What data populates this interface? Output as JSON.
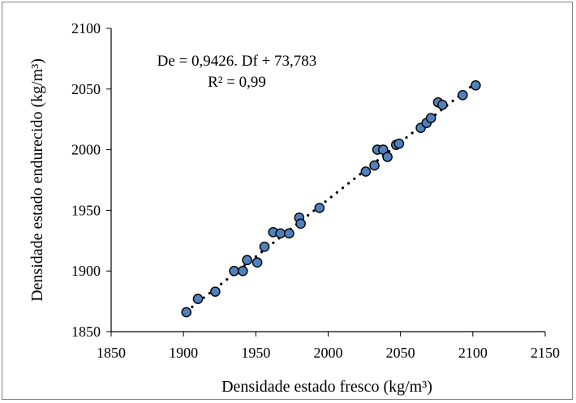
{
  "chart_data": {
    "type": "scatter",
    "xlabel": "Densidade estado fresco (kg/m³)",
    "ylabel": "Densidade estado endurecido (kg/m³)",
    "xlim": [
      1850,
      2150
    ],
    "ylim": [
      1850,
      2100
    ],
    "x_ticks": [
      "1850",
      "1900",
      "1950",
      "2000",
      "2050",
      "2100",
      "2150"
    ],
    "y_ticks": [
      "1850",
      "1900",
      "1950",
      "2000",
      "2050",
      "2100"
    ],
    "equation": "De = 0,9426. Df + 73,783",
    "r_squared": "R² = 0,99",
    "trendline": {
      "slope": 0.9426,
      "intercept": 73.783,
      "x_range": [
        1902,
        2102
      ],
      "style": "dotted"
    },
    "marker_color": "#4f81bd",
    "points": [
      {
        "x": 1902,
        "y": 1866
      },
      {
        "x": 1910,
        "y": 1877
      },
      {
        "x": 1922,
        "y": 1883
      },
      {
        "x": 1935,
        "y": 1900
      },
      {
        "x": 1941,
        "y": 1900
      },
      {
        "x": 1944,
        "y": 1909
      },
      {
        "x": 1951,
        "y": 1907
      },
      {
        "x": 1956,
        "y": 1920
      },
      {
        "x": 1962,
        "y": 1932
      },
      {
        "x": 1967,
        "y": 1931
      },
      {
        "x": 1973,
        "y": 1931
      },
      {
        "x": 1980,
        "y": 1944
      },
      {
        "x": 1981,
        "y": 1939
      },
      {
        "x": 1994,
        "y": 1952
      },
      {
        "x": 2026,
        "y": 1982
      },
      {
        "x": 2032,
        "y": 1987
      },
      {
        "x": 2034,
        "y": 2000
      },
      {
        "x": 2038,
        "y": 2000
      },
      {
        "x": 2041,
        "y": 1994
      },
      {
        "x": 2047,
        "y": 2004
      },
      {
        "x": 2049,
        "y": 2005
      },
      {
        "x": 2064,
        "y": 2018
      },
      {
        "x": 2068,
        "y": 2022
      },
      {
        "x": 2071,
        "y": 2026
      },
      {
        "x": 2076,
        "y": 2039
      },
      {
        "x": 2079,
        "y": 2037
      },
      {
        "x": 2093,
        "y": 2045
      },
      {
        "x": 2102,
        "y": 2053
      }
    ]
  }
}
